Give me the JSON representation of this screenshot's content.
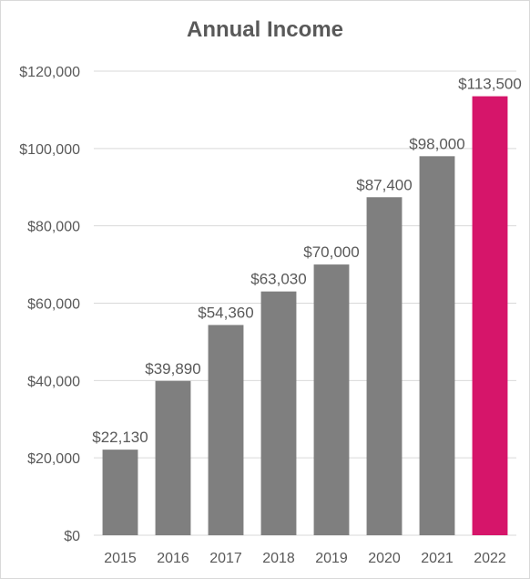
{
  "chart_data": {
    "type": "bar",
    "title": "Annual Income",
    "xlabel": "",
    "ylabel": "",
    "categories": [
      "2015",
      "2016",
      "2017",
      "2018",
      "2019",
      "2020",
      "2021",
      "2022"
    ],
    "values": [
      22130,
      39890,
      54360,
      63030,
      70000,
      87400,
      98000,
      113500
    ],
    "data_labels": [
      "$22,130",
      "$39,890",
      "$54,360",
      "$63,030",
      "$70,000",
      "$87,400",
      "$98,000",
      "$113,500"
    ],
    "ylim": [
      0,
      120000
    ],
    "yticks": [
      0,
      20000,
      40000,
      60000,
      80000,
      100000,
      120000
    ],
    "ytick_labels": [
      "$0",
      "$20,000",
      "$40,000",
      "$60,000",
      "$80,000",
      "$100,000",
      "$120,000"
    ],
    "grid": true,
    "legend": "none",
    "colors": {
      "bar": "#7f7f7f",
      "highlight": "#d6156a",
      "highlight_category": "2022",
      "gridline": "#d9d9d9",
      "text": "#595959"
    }
  }
}
